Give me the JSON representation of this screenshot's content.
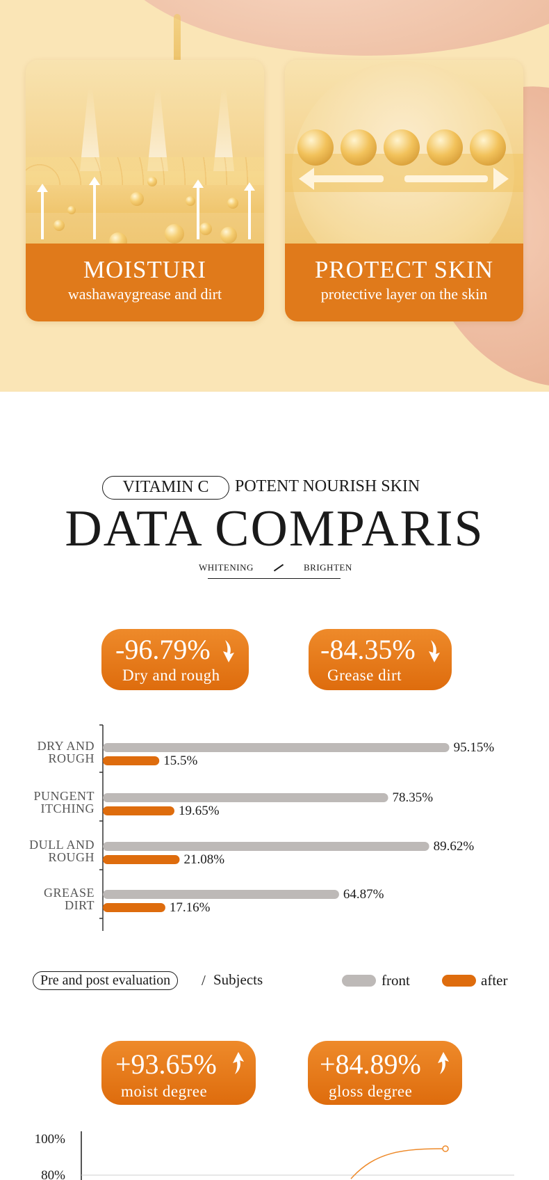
{
  "features": [
    {
      "title": "MOISTURI",
      "subtitle": "washawaygrease and dirt",
      "icon": "moisture-bubbles-illustration"
    },
    {
      "title": "PROTECT SKIN",
      "subtitle": "protective layer on the skin",
      "icon": "protect-barrier-illustration"
    }
  ],
  "comparison": {
    "tag": "VITAMIN C",
    "tagline": "POTENT NOURISH SKIN",
    "title": "DATA COMPARIS",
    "sub_left": "WHITENING",
    "sub_right": "BRIGHTEN"
  },
  "badges_top": [
    {
      "value": "-96.79%",
      "label": "Dry and rough",
      "direction": "down"
    },
    {
      "value": "-84.35%",
      "label": "Grease dirt",
      "direction": "down"
    }
  ],
  "chart_data": [
    {
      "type": "bar",
      "orientation": "horizontal",
      "categories": [
        [
          "DRY AND",
          "ROUGH"
        ],
        [
          "PUNGENT",
          "ITCHING"
        ],
        [
          "DULL AND",
          "ROUGH"
        ],
        [
          "GREASE",
          "DIRT"
        ]
      ],
      "series": [
        {
          "name": "front",
          "values": [
            95.15,
            78.35,
            89.62,
            64.87
          ],
          "labels": [
            "95.15%",
            "78.35%",
            "89.62%",
            "64.87%"
          ],
          "color": "#bdb9b7"
        },
        {
          "name": "after",
          "values": [
            15.5,
            19.65,
            21.08,
            17.16
          ],
          "labels": [
            "15.5%",
            "19.65%",
            "21.08%",
            "17.16%"
          ],
          "color": "#de6c0d"
        }
      ],
      "xlim": [
        0,
        100
      ],
      "legend": "bottom-right"
    },
    {
      "type": "line",
      "yticks": [
        "100%",
        "80%"
      ],
      "ylim": [
        80,
        100
      ],
      "series": [
        {
          "values_visible": [
            80,
            94.6
          ],
          "color": "#ee8a2a"
        }
      ]
    }
  ],
  "legend": {
    "evaluation": "Pre and post evaluation",
    "separator": "/",
    "subjects": "Subjects",
    "front": "front",
    "after": "after"
  },
  "badges_bottom": [
    {
      "value": "+93.65%",
      "label": "moist degree",
      "direction": "up"
    },
    {
      "value": "+84.89%",
      "label": "gloss degree",
      "direction": "up"
    }
  ],
  "colors": {
    "accent": "#de6c0d",
    "cream": "#fae5b6",
    "bar_grey": "#bdb9b7"
  }
}
